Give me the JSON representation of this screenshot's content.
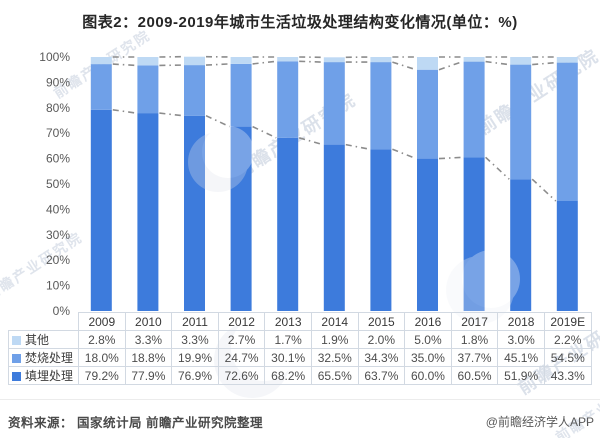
{
  "page": {
    "title": "图表2：2009-2019年城市生活垃圾处理结构变化情况(单位：%)"
  },
  "chart_data": {
    "type": "bar",
    "stacked": true,
    "title": "图表2：2009-2019年城市生活垃圾处理结构变化情况(单位：%)",
    "unit": "%",
    "xlabel": "",
    "ylabel": "",
    "categories": [
      "2009",
      "2010",
      "2011",
      "2012",
      "2013",
      "2014",
      "2015",
      "2016",
      "2017",
      "2018",
      "2019E"
    ],
    "series": [
      {
        "name": "填埋处理",
        "color": "#3d7bdc",
        "values": [
          79.2,
          77.9,
          76.9,
          72.6,
          68.2,
          65.5,
          63.7,
          60.0,
          60.5,
          51.9,
          43.3
        ]
      },
      {
        "name": "焚烧处理",
        "color": "#6fa0e8",
        "values": [
          18.0,
          18.8,
          19.9,
          24.7,
          30.1,
          32.5,
          34.3,
          35.0,
          37.7,
          45.1,
          54.5
        ]
      },
      {
        "name": "其他",
        "color": "#bed9f4",
        "values": [
          2.8,
          3.3,
          3.3,
          2.7,
          1.7,
          1.9,
          2.0,
          5.0,
          1.8,
          3.0,
          2.2
        ]
      }
    ],
    "table_row_order": [
      "其他",
      "焚烧处理",
      "填埋处理"
    ],
    "ylim": [
      0,
      100
    ],
    "ytick_labels": [
      "0%",
      "10%",
      "20%",
      "30%",
      "40%",
      "50%",
      "60%",
      "70%",
      "80%",
      "90%",
      "100%"
    ],
    "grid": false,
    "legend_position": "data-table-left",
    "data_table": true,
    "series_line_color": "#8c8c8c",
    "series_line_style": "dash-dot"
  },
  "watermark": {
    "text": "前瞻产业研究院"
  },
  "footer": {
    "source": "资料来源： 国家统计局 前瞻产业研究院整理",
    "credit": "@前瞻经济学人APP"
  }
}
